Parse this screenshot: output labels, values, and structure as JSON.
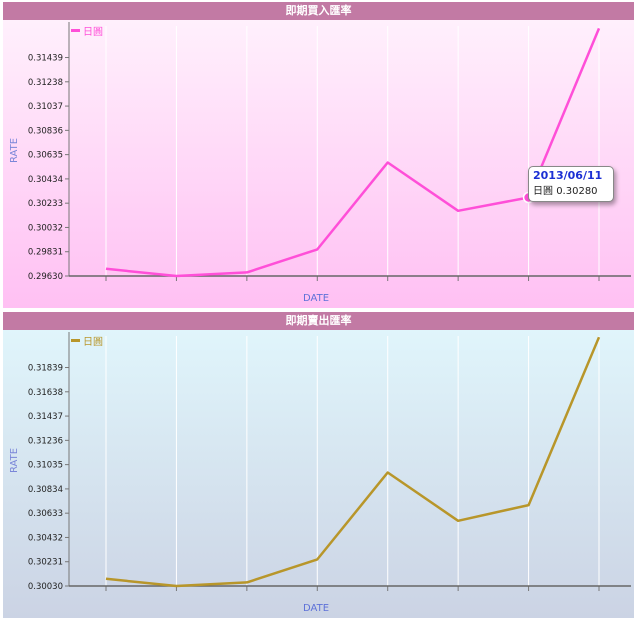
{
  "chart_data": [
    {
      "type": "line",
      "title": "即期買入匯率",
      "xlabel": "DATE",
      "ylabel": "RATE",
      "legend": "top-left",
      "grid": true,
      "series": [
        {
          "name": "日圓",
          "color": "#ff4fd8",
          "values": [
            0.2969,
            0.2963,
            0.2966,
            0.2985,
            0.3057,
            0.3017,
            0.3028,
            0.3168
          ]
        }
      ],
      "yticks": [
        "0.29630",
        "0.29831",
        "0.30032",
        "0.30233",
        "0.30434",
        "0.30635",
        "0.30836",
        "0.31037",
        "0.31238",
        "0.31439"
      ],
      "ylim": [
        0.2963,
        0.317
      ],
      "tooltip": {
        "date": "2013/06/11",
        "series": "日圓",
        "value": "0.30280",
        "index": 6
      }
    },
    {
      "type": "line",
      "title": "即期賣出匯率",
      "xlabel": "DATE",
      "ylabel": "RATE",
      "legend": "top-left",
      "grid": true,
      "series": [
        {
          "name": "日圓",
          "color": "#b8962a",
          "values": [
            0.3009,
            0.3003,
            0.3006,
            0.3025,
            0.3097,
            0.3057,
            0.307,
            0.3209
          ]
        }
      ],
      "yticks": [
        "0.30030",
        "0.30231",
        "0.30432",
        "0.30633",
        "0.30834",
        "0.31035",
        "0.31236",
        "0.31437",
        "0.31638",
        "0.31839"
      ],
      "ylim": [
        0.3003,
        0.321
      ]
    }
  ]
}
